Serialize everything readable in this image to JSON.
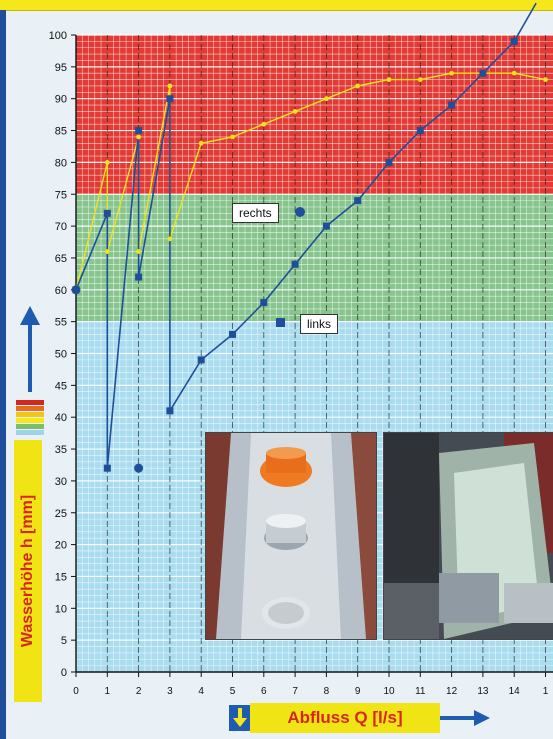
{
  "chart_data": {
    "type": "line",
    "xlabel": "Abfluss Q [l/s]",
    "ylabel": "Wasserhöhe h [mm]",
    "xlim": [
      0,
      15
    ],
    "ylim": [
      0,
      100
    ],
    "x_ticks": [
      "0",
      "1",
      "2",
      "3",
      "4",
      "5",
      "6",
      "7",
      "8",
      "9",
      "10",
      "11",
      "12",
      "13",
      "14",
      "1"
    ],
    "y_ticks": [
      "0",
      "5",
      "10",
      "15",
      "20",
      "25",
      "30",
      "35",
      "40",
      "45",
      "50",
      "55",
      "60",
      "65",
      "70",
      "75",
      "80",
      "85",
      "90",
      "95",
      "100"
    ],
    "zones": [
      {
        "from": 0,
        "to": 55,
        "color": "#a9dcef"
      },
      {
        "from": 55,
        "to": 75,
        "color": "#88c58e"
      },
      {
        "from": 75,
        "to": 100,
        "color": "#e23a34"
      }
    ],
    "series": [
      {
        "name": "links",
        "color": "#1f4f9a",
        "x": [
          0,
          1,
          1,
          2,
          2,
          3,
          3,
          4,
          5,
          6,
          7,
          8,
          9,
          10,
          11,
          12,
          13,
          14,
          14.7
        ],
        "y": [
          60,
          72,
          32,
          85,
          62,
          90,
          41,
          49,
          53,
          58,
          64,
          70,
          74,
          80,
          85,
          89,
          94,
          99,
          105
        ]
      },
      {
        "name": "rechts",
        "color": "#f0e21e",
        "x": [
          0,
          1,
          1,
          2,
          2,
          3,
          3,
          4,
          5,
          6,
          7,
          8,
          9,
          10,
          11,
          12,
          13,
          14,
          15
        ],
        "y": [
          60,
          80,
          66,
          84,
          66,
          92,
          68,
          83,
          84,
          86,
          88,
          90,
          92,
          93,
          93,
          94,
          94,
          94,
          93
        ]
      },
      {
        "name": "rechts-dots",
        "color": "#1f4f9a",
        "x": [
          0,
          2
        ],
        "y": [
          60,
          32
        ]
      }
    ],
    "legend": [
      {
        "label": "rechts",
        "marker": "circle",
        "placement": "middle-center"
      },
      {
        "label": "links",
        "marker": "square",
        "placement": "middle-center"
      }
    ]
  },
  "photos": [
    {
      "name": "photo-outlet-detail",
      "colors": [
        "#6d7f8c",
        "#b0bcc6",
        "#e3e6e8",
        "#f07a22"
      ]
    },
    {
      "name": "photo-channel-flow",
      "colors": [
        "#3a4148",
        "#7f8f8a",
        "#c9d8cf",
        "#8a2c2a"
      ]
    }
  ]
}
